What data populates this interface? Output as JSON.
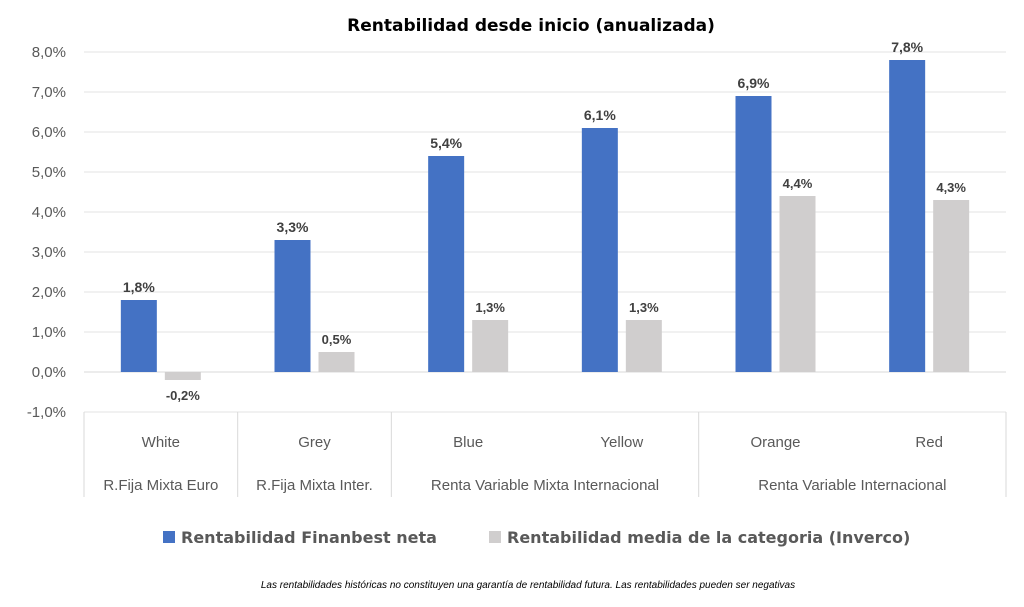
{
  "chart_data": {
    "type": "bar",
    "title": "Rentabilidad desde inicio (anualizada)",
    "categories": [
      "White",
      "Grey",
      "Blue",
      "Yellow",
      "Orange",
      "Red"
    ],
    "category_groups": [
      {
        "label": "R.Fija Mixta Euro",
        "span": 1
      },
      {
        "label": "R.Fija Mixta Inter.",
        "span": 1
      },
      {
        "label": "Renta Variable Mixta Internacional",
        "span": 2
      },
      {
        "label": "Renta Variable Internacional",
        "span": 2
      }
    ],
    "series": [
      {
        "name": "Rentabilidad Finanbest neta",
        "color": "#4472C4",
        "values": [
          1.8,
          3.3,
          5.4,
          6.1,
          6.9,
          7.8
        ],
        "labels": [
          "1,8%",
          "3,3%",
          "5,4%",
          "6,1%",
          "6,9%",
          "7,8%"
        ]
      },
      {
        "name": "Rentabilidad media de la categoria (Inverco)",
        "color": "#D0CECE",
        "values": [
          -0.2,
          0.5,
          1.3,
          1.3,
          4.4,
          4.3
        ],
        "labels": [
          "-0,2%",
          "0,5%",
          "1,3%",
          "1,3%",
          "4,4%",
          "4,3%"
        ]
      }
    ],
    "ylim": [
      -1,
      8
    ],
    "yticks": [
      8,
      7,
      6,
      5,
      4,
      3,
      2,
      1,
      0,
      -1
    ],
    "ytick_labels": [
      "8,0%",
      "7,0%",
      "6,0%",
      "5,0%",
      "4,0%",
      "3,0%",
      "2,0%",
      "1,0%",
      "0,0%",
      "-1,0%"
    ],
    "grid": true,
    "legend": "bottom",
    "xlabel": "",
    "ylabel": ""
  },
  "footnote": "Las rentabilidades históricas no constituyen una garantía de rentabilidad futura. Las rentabilidades pueden ser negativas"
}
